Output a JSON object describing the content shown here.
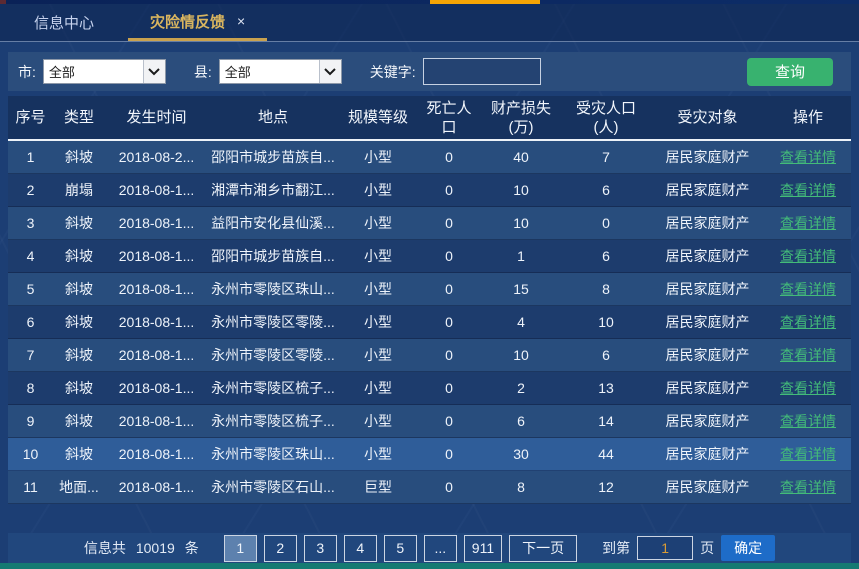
{
  "tabs": [
    {
      "label": "信息中心",
      "active": false
    },
    {
      "label": "灾险情反馈",
      "active": true,
      "close_icon": "×"
    }
  ],
  "filters": {
    "city_label": "市:",
    "city_value": "全部",
    "county_label": "县:",
    "county_value": "全部",
    "keyword_label": "关键字:",
    "keyword_value": "",
    "search_button": "查询"
  },
  "icons": {
    "close": "×",
    "dropdown": "chevron-down"
  },
  "table": {
    "columns": [
      "序号",
      "类型",
      "发生时间",
      "地点",
      "规模等级",
      "死亡人\n口",
      "财产损失\n(万)",
      "受灾人口\n(人)",
      "受灾对象",
      "操作"
    ],
    "rows": [
      {
        "cells": [
          "1",
          "斜坡",
          "2018-08-2...",
          "邵阳市城步苗族自...",
          "小型",
          "0",
          "40",
          "7",
          "居民家庭财产",
          "查看详情"
        ]
      },
      {
        "cells": [
          "2",
          "崩塌",
          "2018-08-1...",
          "湘潭市湘乡市翻江...",
          "小型",
          "0",
          "10",
          "6",
          "居民家庭财产",
          "查看详情"
        ]
      },
      {
        "cells": [
          "3",
          "斜坡",
          "2018-08-1...",
          "益阳市安化县仙溪...",
          "小型",
          "0",
          "10",
          "0",
          "居民家庭财产",
          "查看详情"
        ]
      },
      {
        "cells": [
          "4",
          "斜坡",
          "2018-08-1...",
          "邵阳市城步苗族自...",
          "小型",
          "0",
          "1",
          "6",
          "居民家庭财产",
          "查看详情"
        ]
      },
      {
        "cells": [
          "5",
          "斜坡",
          "2018-08-1...",
          "永州市零陵区珠山...",
          "小型",
          "0",
          "15",
          "8",
          "居民家庭财产",
          "查看详情"
        ]
      },
      {
        "cells": [
          "6",
          "斜坡",
          "2018-08-1...",
          "永州市零陵区零陵...",
          "小型",
          "0",
          "4",
          "10",
          "居民家庭财产",
          "查看详情"
        ]
      },
      {
        "cells": [
          "7",
          "斜坡",
          "2018-08-1...",
          "永州市零陵区零陵...",
          "小型",
          "0",
          "10",
          "6",
          "居民家庭财产",
          "查看详情"
        ]
      },
      {
        "cells": [
          "8",
          "斜坡",
          "2018-08-1...",
          "永州市零陵区梳子...",
          "小型",
          "0",
          "2",
          "13",
          "居民家庭财产",
          "查看详情"
        ]
      },
      {
        "cells": [
          "9",
          "斜坡",
          "2018-08-1...",
          "永州市零陵区梳子...",
          "小型",
          "0",
          "6",
          "14",
          "居民家庭财产",
          "查看详情"
        ]
      },
      {
        "cells": [
          "10",
          "斜坡",
          "2018-08-1...",
          "永州市零陵区珠山...",
          "小型",
          "0",
          "30",
          "44",
          "居民家庭财产",
          "查看详情"
        ],
        "highlighted": true
      },
      {
        "cells": [
          "11",
          "地面...",
          "2018-08-1...",
          "永州市零陵区石山...",
          "巨型",
          "0",
          "8",
          "12",
          "居民家庭财产",
          "查看详情"
        ]
      }
    ]
  },
  "pagination": {
    "total_label_prefix": "信息共",
    "total_count": "10019",
    "total_label_suffix": "条",
    "pages": [
      "1",
      "2",
      "3",
      "4",
      "5",
      "...",
      "911"
    ],
    "active_page": "1",
    "next_button": "下一页",
    "goto_prefix": "到第",
    "goto_value": "1",
    "goto_suffix": "页",
    "confirm_button": "确定"
  },
  "colors": {
    "accent_orange": "#f6a504",
    "query_green": "#38b26f",
    "link_green": "#43bb79",
    "tab_gold": "#d9b55f",
    "confirm_blue": "#1e6cc8",
    "page_active_blue": "#5d81ae",
    "bottom_teal": "#157a72",
    "goto_orange": "#d99b35",
    "highlight_row": "#2f5d99"
  }
}
